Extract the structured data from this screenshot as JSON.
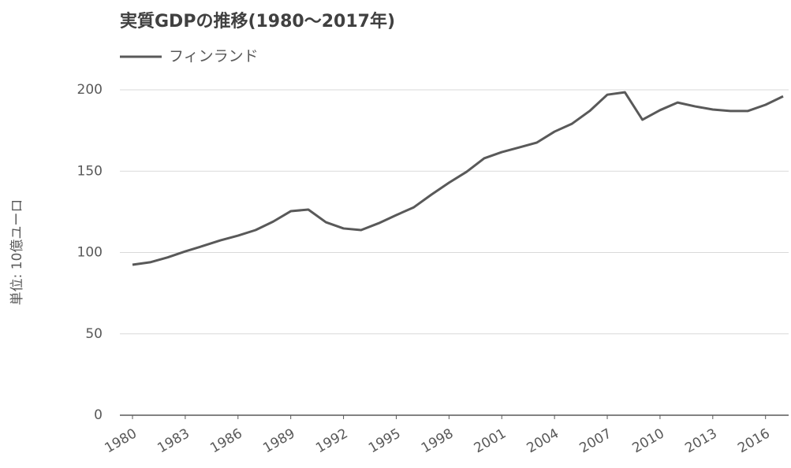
{
  "chart_data": {
    "type": "line",
    "title": "実質GDPの推移(1980～2017年)",
    "y_label": "単位: 10億ユーロ",
    "x": [
      1980,
      1981,
      1982,
      1983,
      1984,
      1985,
      1986,
      1987,
      1988,
      1989,
      1990,
      1991,
      1992,
      1993,
      1994,
      1995,
      1996,
      1997,
      1998,
      1999,
      2000,
      2001,
      2002,
      2003,
      2004,
      2005,
      2006,
      2007,
      2008,
      2009,
      2010,
      2011,
      2012,
      2013,
      2014,
      2015,
      2016,
      2017
    ],
    "series": [
      {
        "name": "フィンランド",
        "color": "#595959",
        "values": [
          92.5,
          94,
          97,
          100.7,
          104,
          107.5,
          110.4,
          113.8,
          119,
          125.4,
          126.4,
          118.6,
          114.8,
          113.8,
          118,
          123,
          127.8,
          135.6,
          142.9,
          149.6,
          157.9,
          161.7,
          164.6,
          167.6,
          174.3,
          179.2,
          187,
          197,
          198.5,
          181.6,
          187.5,
          192.2,
          189.8,
          187.9,
          187,
          187,
          190.8,
          196
        ]
      }
    ],
    "xlim": [
      1980,
      2017
    ],
    "xticks": [
      1980,
      1983,
      1986,
      1989,
      1992,
      1995,
      1998,
      2001,
      2004,
      2007,
      2010,
      2013,
      2016
    ],
    "ylim": [
      0,
      200
    ],
    "yticks": [
      0,
      50,
      100,
      150,
      200
    ],
    "grid": true
  }
}
